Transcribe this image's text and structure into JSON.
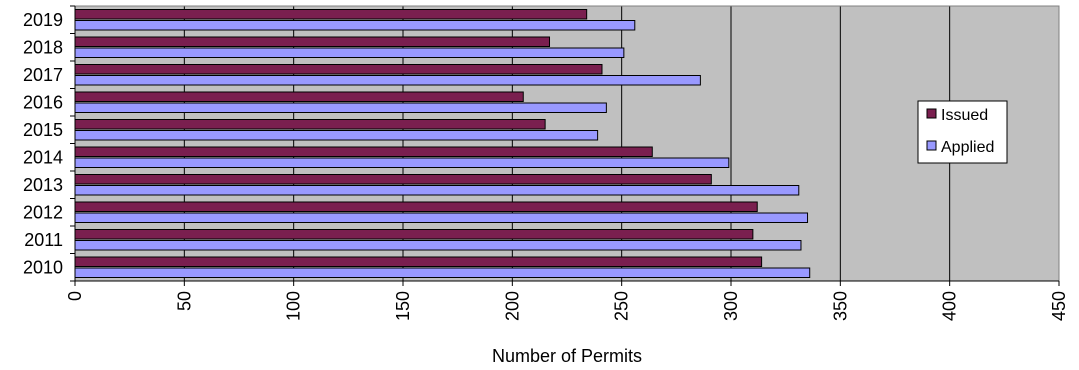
{
  "chart_data": {
    "type": "bar",
    "orientation": "horizontal",
    "categories": [
      "2019",
      "2018",
      "2017",
      "2016",
      "2015",
      "2014",
      "2013",
      "2012",
      "2011",
      "2010"
    ],
    "series": [
      {
        "name": "Issued",
        "values": [
          234,
          217,
          241,
          205,
          215,
          264,
          291,
          312,
          310,
          314
        ]
      },
      {
        "name": "Applied",
        "values": [
          256,
          251,
          286,
          243,
          239,
          299,
          331,
          335,
          332,
          336
        ]
      }
    ],
    "xlabel": "Number of Permits",
    "ylabel": "",
    "title": "",
    "xlim": [
      0,
      450
    ],
    "xticks": [
      "0",
      "50",
      "100",
      "150",
      "200",
      "250",
      "300",
      "350",
      "400",
      "450"
    ],
    "grid": "vertical",
    "legend_position": "right",
    "colors": {
      "plot_background": "#c0c0c0",
      "issued": "#7a1f4f",
      "applied": "#9999ff",
      "gridline": "#000000"
    }
  }
}
